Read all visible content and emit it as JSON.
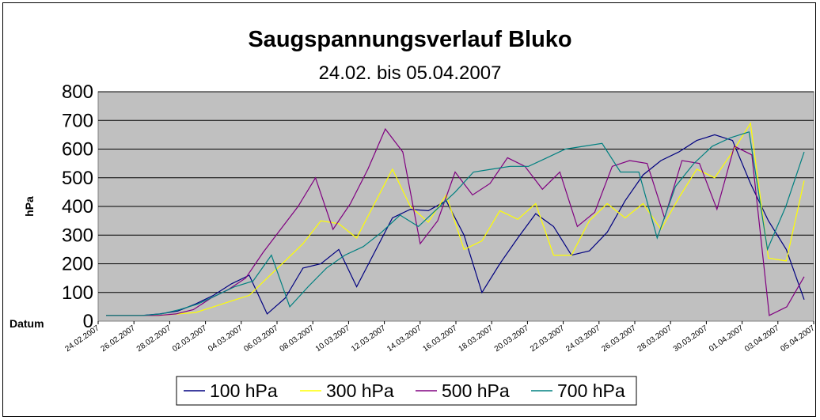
{
  "chart_data": {
    "type": "line",
    "title": "Saugspannungsverlauf Bluko",
    "subtitle": "24.02. bis 05.04.2007",
    "ylabel": "hPa",
    "xlabel": "Datum",
    "ylim": [
      0,
      800
    ],
    "yticks": [
      0,
      100,
      200,
      300,
      400,
      500,
      600,
      700,
      800
    ],
    "xtick_labels": [
      "24.02.2007",
      "26.02.2007",
      "28.02.2007",
      "02.03.2007",
      "04.03.2007",
      "06.03.2007",
      "08.03.2007",
      "10.03.2007",
      "12.03.2007",
      "14.03.2007",
      "16.03.2007",
      "18.03.2007",
      "20.03.2007",
      "22.03.2007",
      "24.03.2007",
      "26.03.2007",
      "28.03.2007",
      "30.03.2007",
      "01.04.2007",
      "03.04.2007",
      "05.04.2007"
    ],
    "background_color": "#c0c0c0",
    "grid": true,
    "legend_position": "bottom",
    "series": [
      {
        "name": "100 hPa",
        "color": "#000080",
        "values": [
          20,
          20,
          20,
          25,
          35,
          60,
          90,
          130,
          160,
          25,
          80,
          185,
          200,
          250,
          120,
          240,
          360,
          390,
          385,
          420,
          300,
          100,
          200,
          290,
          375,
          330,
          230,
          245,
          310,
          420,
          510,
          560,
          590,
          630,
          650,
          630,
          480,
          350,
          250,
          75
        ]
      },
      {
        "name": "300 hPa",
        "color": "#ffff00",
        "values": [
          20,
          20,
          20,
          20,
          25,
          30,
          50,
          70,
          90,
          150,
          210,
          270,
          350,
          340,
          290,
          410,
          530,
          400,
          345,
          440,
          250,
          280,
          385,
          355,
          410,
          230,
          230,
          350,
          410,
          360,
          410,
          320,
          430,
          530,
          500,
          590,
          690,
          220,
          210,
          490
        ]
      },
      {
        "name": "500 hPa",
        "color": "#800080",
        "values": [
          20,
          20,
          20,
          20,
          25,
          40,
          80,
          110,
          150,
          240,
          320,
          400,
          500,
          320,
          410,
          530,
          670,
          590,
          270,
          350,
          520,
          440,
          480,
          570,
          540,
          460,
          520,
          330,
          380,
          540,
          560,
          550,
          360,
          560,
          550,
          390,
          610,
          580,
          20,
          50,
          155
        ]
      },
      {
        "name": "700 hPa",
        "color": "#008080",
        "values": [
          20,
          20,
          20,
          25,
          40,
          60,
          90,
          120,
          140,
          230,
          50,
          120,
          185,
          230,
          260,
          310,
          370,
          330,
          390,
          450,
          520,
          530,
          540,
          540,
          570,
          600,
          610,
          620,
          520,
          520,
          290,
          470,
          550,
          610,
          640,
          660,
          250,
          400,
          590
        ]
      }
    ]
  }
}
